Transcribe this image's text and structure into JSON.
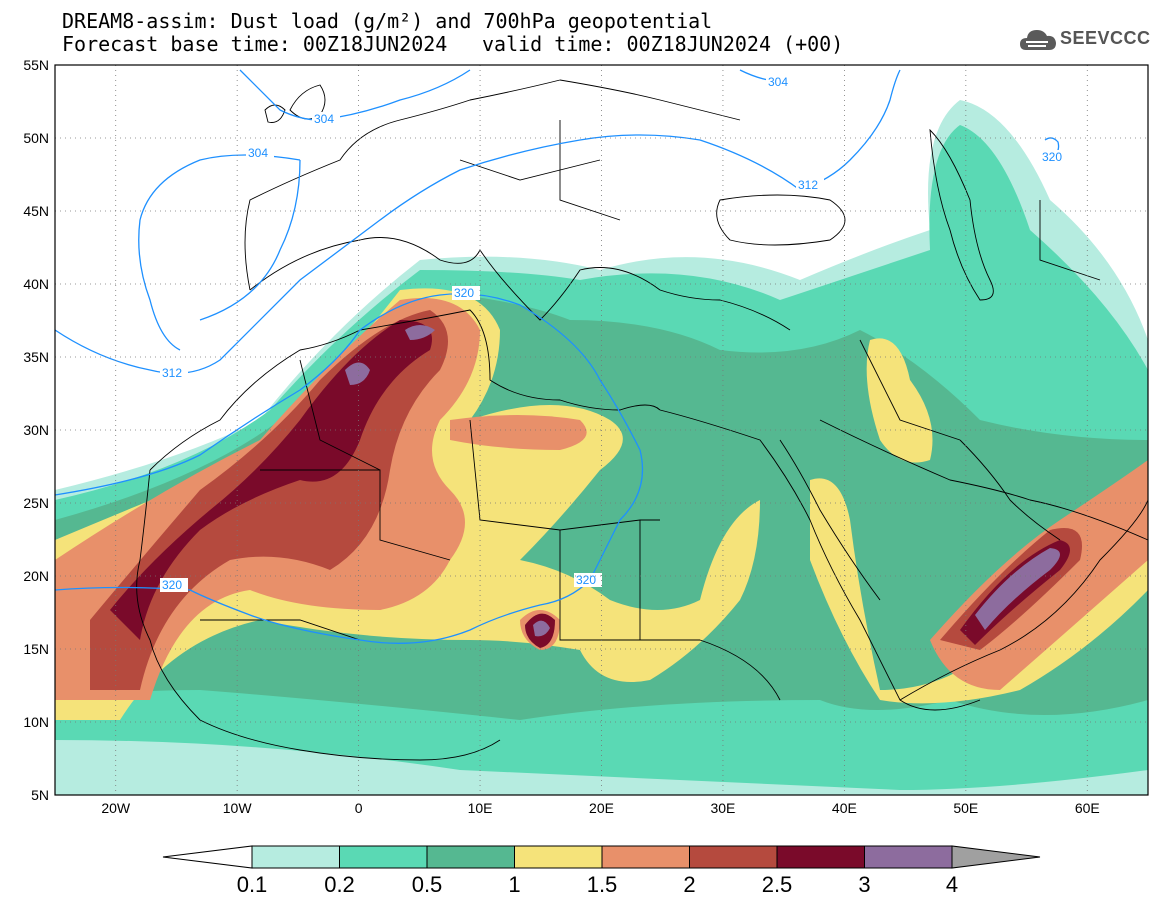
{
  "header": {
    "line1": "DREAM8-assim: Dust load (g/m²) and 700hPa geopotential",
    "line2": "Forecast base time: 00Z18JUN2024",
    "valid": "valid time: 00Z18JUN2024 (+00)"
  },
  "logo": {
    "text": "SEEVCCC",
    "icon": "cloud-icon"
  },
  "map": {
    "lon_range": [
      -25,
      65
    ],
    "lat_range": [
      5,
      55
    ],
    "lon_ticks": [
      "20W",
      "10W",
      "0",
      "10E",
      "20E",
      "30E",
      "40E",
      "50E",
      "60E"
    ],
    "lat_ticks": [
      "55N",
      "50N",
      "45N",
      "40N",
      "35N",
      "30N",
      "25N",
      "20N",
      "15N",
      "10N",
      "5N"
    ],
    "contour_labels": [
      "304",
      "304",
      "304",
      "312",
      "312",
      "320",
      "320",
      "320",
      "320"
    ],
    "contour_color": "#1e90ff"
  },
  "colorbar": {
    "labels": [
      "0.1",
      "0.2",
      "0.5",
      "1",
      "1.5",
      "2",
      "2.5",
      "3",
      "4"
    ],
    "colors": [
      "#b6ece0",
      "#5ad9b4",
      "#55b891",
      "#f5e37a",
      "#e8906a",
      "#b54a3e",
      "#7a0a2a",
      "#8d6c9e"
    ],
    "under_color": "#ffffff",
    "over_color": "#a0a0a0"
  }
}
